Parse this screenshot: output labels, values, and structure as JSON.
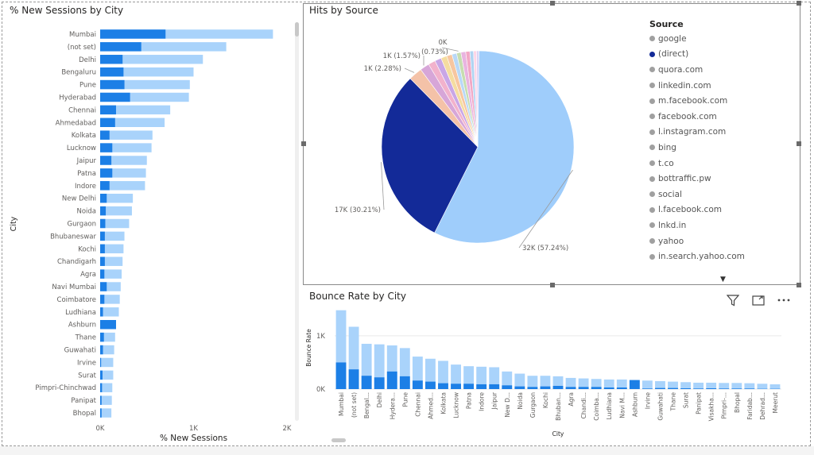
{
  "colors": {
    "light": "#a9d3fb",
    "dark": "#1c7fe6",
    "pie_dark": "#132a98",
    "pie_light": "#9fcdfb",
    "axis_text": "#605e5c"
  },
  "sessions_chart": {
    "title": "% New Sessions by City",
    "xlabel": "% New Sessions",
    "ylabel": "City",
    "ticks": [
      "0K",
      "1K",
      "2K"
    ]
  },
  "source_chart": {
    "title": "Hits by Source",
    "legend_title": "Source",
    "legend": [
      {
        "label": "google",
        "color": "#a0a0a0"
      },
      {
        "label": "(direct)",
        "color": "#132a98"
      },
      {
        "label": "quora.com",
        "color": "#a0a0a0"
      },
      {
        "label": "linkedin.com",
        "color": "#a0a0a0"
      },
      {
        "label": "m.facebook.com",
        "color": "#a0a0a0"
      },
      {
        "label": "facebook.com",
        "color": "#a0a0a0"
      },
      {
        "label": "l.instagram.com",
        "color": "#a0a0a0"
      },
      {
        "label": "bing",
        "color": "#a0a0a0"
      },
      {
        "label": "t.co",
        "color": "#a0a0a0"
      },
      {
        "label": "bottraffic.pw",
        "color": "#a0a0a0"
      },
      {
        "label": "social",
        "color": "#a0a0a0"
      },
      {
        "label": "l.facebook.com",
        "color": "#a0a0a0"
      },
      {
        "label": "lnkd.in",
        "color": "#a0a0a0"
      },
      {
        "label": "yahoo",
        "color": "#a0a0a0"
      },
      {
        "label": "in.search.yahoo.com",
        "color": "#a0a0a0"
      }
    ],
    "more_icon": "triangle-down-icon"
  },
  "bounce_chart": {
    "title": "Bounce Rate by City",
    "xlabel": "City",
    "ylabel": "Bounce Rate",
    "ticks": [
      "0K",
      "1K"
    ],
    "icons": [
      "filter-icon",
      "focus-mode-icon",
      "more-options-icon"
    ]
  },
  "chart_data": [
    {
      "type": "bar",
      "orientation": "horizontal",
      "title": "% New Sessions by City",
      "xlabel": "% New Sessions",
      "ylabel": "City",
      "xlim": [
        0,
        2000
      ],
      "categories": [
        "Mumbai",
        "(not set)",
        "Delhi",
        "Bengaluru",
        "Pune",
        "Hyderabad",
        "Chennai",
        "Ahmedabad",
        "Kolkata",
        "Lucknow",
        "Jaipur",
        "Patna",
        "Indore",
        "New Delhi",
        "Noida",
        "Gurgaon",
        "Bhubaneswar",
        "Kochi",
        "Chandigarh",
        "Agra",
        "Navi Mumbai",
        "Coimbatore",
        "Ludhiana",
        "Ashburn",
        "Thane",
        "Guwahati",
        "Irvine",
        "Surat",
        "Pimpri-Chinchwad",
        "Panipat",
        "Bhopal"
      ],
      "series": [
        {
          "values": [
            1850,
            1350,
            1100,
            1000,
            960,
            950,
            750,
            690,
            560,
            550,
            500,
            490,
            480,
            350,
            340,
            310,
            260,
            250,
            240,
            230,
            220,
            210,
            200,
            170,
            160,
            150,
            140,
            140,
            130,
            125,
            120
          ]
        },
        {
          "values": [
            700,
            440,
            240,
            250,
            260,
            320,
            170,
            160,
            100,
            130,
            120,
            130,
            100,
            70,
            60,
            55,
            50,
            50,
            50,
            45,
            70,
            45,
            30,
            170,
            40,
            30,
            10,
            25,
            20,
            15,
            15
          ]
        }
      ]
    },
    {
      "type": "pie",
      "title": "Hits by Source",
      "series": [
        {
          "label": "google",
          "value": 57.24,
          "data_label": "32K (57.24%)"
        },
        {
          "label": "(direct)",
          "value": 30.21,
          "data_label": "17K (30.21%)"
        },
        {
          "label": "quora.com",
          "value": 2.28,
          "data_label": "1K (2.28%)"
        },
        {
          "label": "linkedin.com",
          "value": 1.57,
          "data_label": "1K (1.57%)"
        },
        {
          "label": "m.facebook.com",
          "value": 1.2
        },
        {
          "label": "facebook.com",
          "value": 1.1
        },
        {
          "label": "l.instagram.com",
          "value": 1.0
        },
        {
          "label": "bing",
          "value": 0.9
        },
        {
          "label": "t.co",
          "value": 0.8
        },
        {
          "label": "bottraffic.pw",
          "value": 0.73,
          "data_label": "0K (0.73%)"
        },
        {
          "label": "social",
          "value": 0.8
        },
        {
          "label": "l.facebook.com",
          "value": 0.7
        },
        {
          "label": "lnkd.in",
          "value": 0.6
        },
        {
          "label": "yahoo",
          "value": 0.5
        },
        {
          "label": "in.search.yahoo.com",
          "value": 0.4
        }
      ]
    },
    {
      "type": "bar",
      "title": "Bounce Rate by City",
      "xlabel": "City",
      "ylabel": "Bounce Rate",
      "ylim": [
        0,
        1550
      ],
      "categories": [
        "Mumbai",
        "(not set)",
        "Bengal...",
        "Delhi",
        "Hydera...",
        "Pune",
        "Chennai",
        "Ahmed...",
        "Kolkata",
        "Lucknow",
        "Patna",
        "Indore",
        "Jaipur",
        "New D...",
        "Noida",
        "Gurgaon",
        "Kochi",
        "Bhuban...",
        "Agra",
        "Chandi...",
        "Coimba...",
        "Ludhiana",
        "Navi M...",
        "Ashburn",
        "Irvine",
        "Guwahati",
        "Thane",
        "Surat",
        "Panipat",
        "Visakha...",
        "Pimpri-...",
        "Bhopal",
        "Faridab...",
        "Dehrad...",
        "Meerut"
      ],
      "series": [
        {
          "values": [
            1480,
            1170,
            850,
            840,
            820,
            770,
            610,
            570,
            530,
            460,
            430,
            420,
            410,
            330,
            290,
            250,
            250,
            240,
            210,
            200,
            190,
            180,
            180,
            170,
            160,
            150,
            140,
            130,
            120,
            120,
            115,
            115,
            110,
            100,
            90
          ]
        },
        {
          "values": [
            500,
            370,
            250,
            220,
            330,
            240,
            160,
            140,
            110,
            100,
            100,
            90,
            90,
            70,
            50,
            40,
            50,
            60,
            40,
            40,
            40,
            30,
            30,
            170,
            10,
            20,
            20,
            15,
            10,
            15,
            10,
            10,
            10,
            5,
            5
          ]
        }
      ]
    }
  ]
}
